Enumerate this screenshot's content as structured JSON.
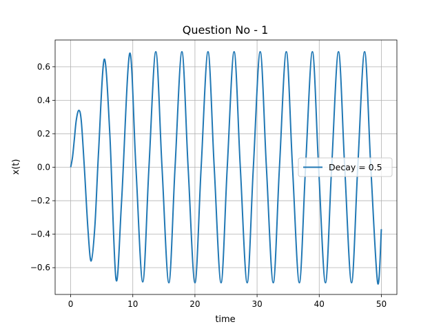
{
  "chart_data": {
    "type": "line",
    "title": "Question No - 1",
    "xlabel": "time",
    "ylabel": "x(t)",
    "xlim": [
      -2.5,
      52.5
    ],
    "ylim": [
      -0.76,
      0.76
    ],
    "x_ticks": [
      0,
      10,
      20,
      30,
      40,
      50
    ],
    "y_ticks": [
      -0.6,
      -0.4,
      -0.2,
      0.0,
      0.2,
      0.4,
      0.6
    ],
    "x_tick_labels": [
      "0",
      "10",
      "20",
      "30",
      "40",
      "50"
    ],
    "y_tick_labels": [
      "−0.6",
      "−0.4",
      "−0.2",
      "0.0",
      "0.2",
      "0.4",
      "0.6"
    ],
    "grid": true,
    "legend_position": "center-right",
    "series": [
      {
        "name": "Decay = 0.5",
        "color": "#1f77b4",
        "x": [
          0,
          0.3,
          0.6,
          0.9,
          1.3,
          1.7,
          2.2,
          2.8,
          3.3,
          3.9,
          4.5,
          5.4,
          6.3,
          7.3,
          8.2,
          9.5,
          10.5,
          11.6,
          12.6,
          13.7,
          14.7,
          15.8,
          16.8,
          17.9,
          18.9,
          20.0,
          21.0,
          22.1,
          23.1,
          24.2,
          25.2,
          26.3,
          27.3,
          28.4,
          29.4,
          30.5,
          31.5,
          32.6,
          33.6,
          34.7,
          35.7,
          36.8,
          37.8,
          38.9,
          39.9,
          41.0,
          42.0,
          43.1,
          44.1,
          45.2,
          46.2,
          47.3,
          48.3,
          49.4,
          50.0
        ],
        "y": [
          0,
          0.06,
          0.17,
          0.28,
          0.34,
          0.28,
          0.0,
          -0.38,
          -0.56,
          -0.35,
          0.1,
          0.645,
          0.2,
          -0.67,
          -0.2,
          0.68,
          0.0,
          -0.685,
          0.0,
          0.69,
          0.0,
          -0.69,
          0.0,
          0.69,
          0.0,
          -0.69,
          0.0,
          0.69,
          0.0,
          -0.69,
          0.0,
          0.69,
          0.0,
          -0.69,
          0.0,
          0.69,
          0.0,
          -0.69,
          0.0,
          0.69,
          0.0,
          -0.69,
          0.0,
          0.69,
          0.0,
          -0.69,
          0.0,
          0.69,
          0.0,
          -0.69,
          0.0,
          0.69,
          0.0,
          -0.69,
          -0.37
        ]
      }
    ]
  }
}
